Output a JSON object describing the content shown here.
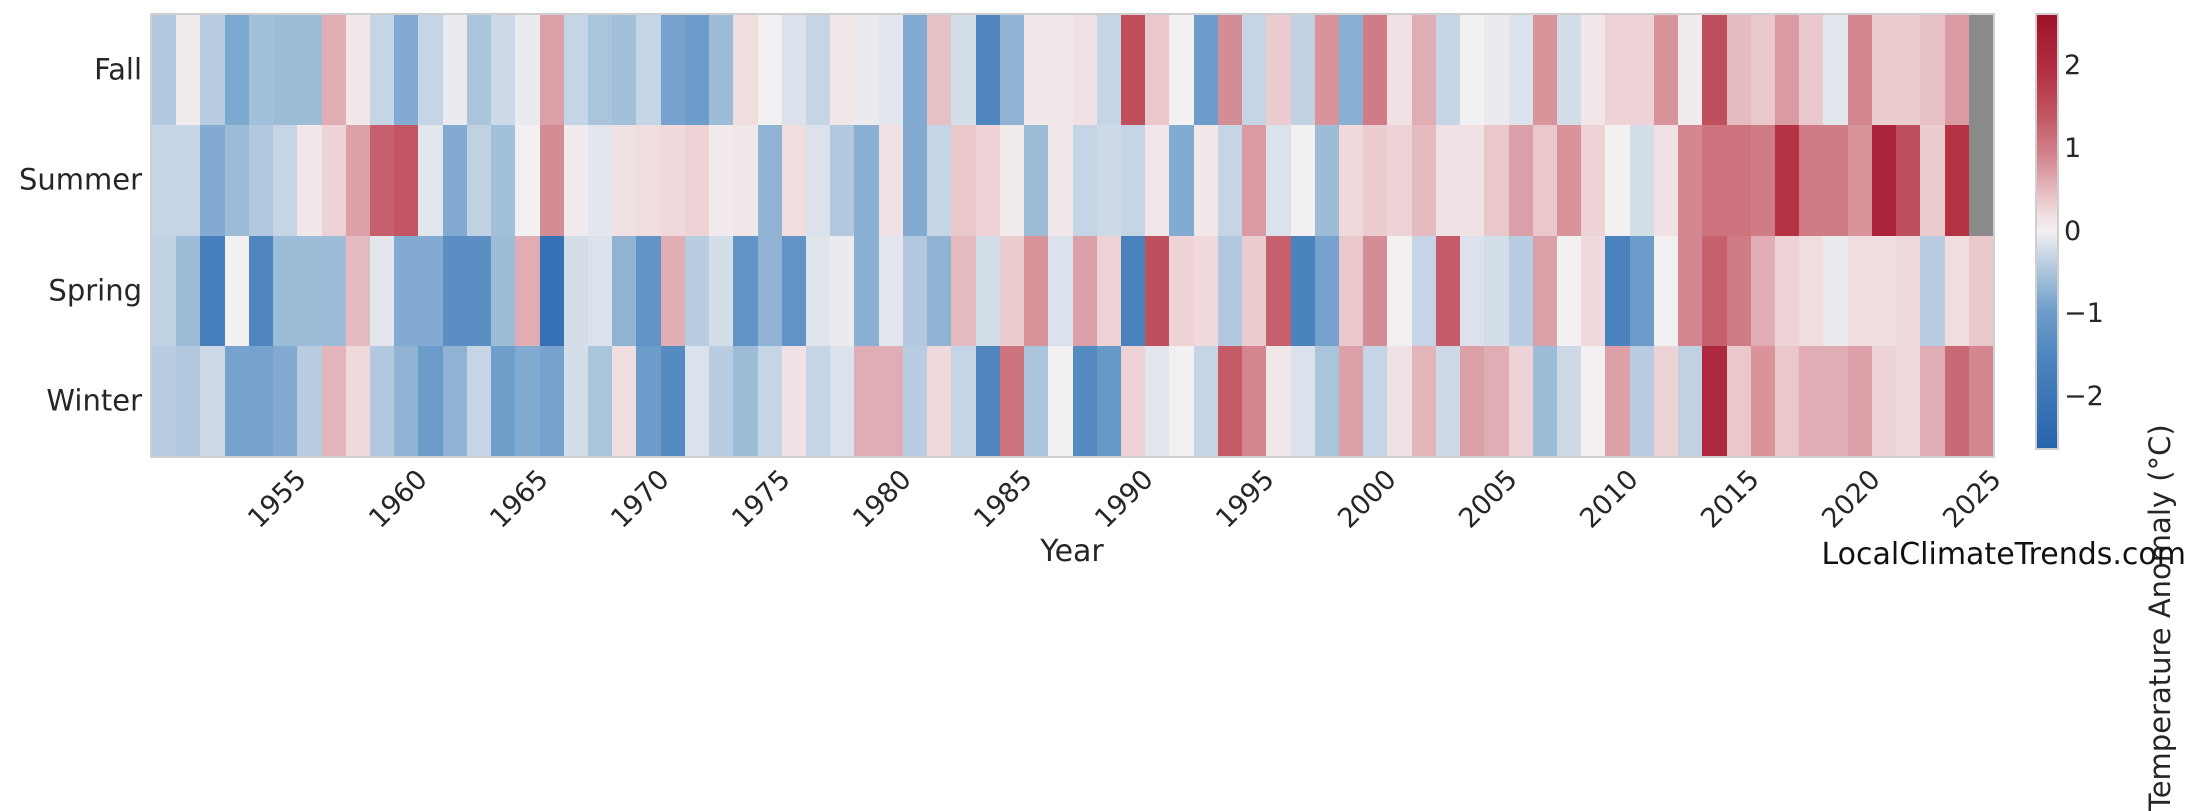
{
  "watermark": "LocalClimateTrends.com",
  "text_color": "#262626",
  "chart_data": {
    "type": "heatmap",
    "title": "",
    "xlabel": "Year",
    "x_start": 1950,
    "x_end": 2025,
    "x_ticks": [
      1955,
      1960,
      1965,
      1970,
      1975,
      1980,
      1985,
      1990,
      1995,
      2000,
      2005,
      2010,
      2015,
      2020,
      2025
    ],
    "rows": [
      {
        "label": "Fall",
        "values": [
          -0.45,
          0.05,
          -0.4,
          -0.85,
          -0.55,
          -0.6,
          -0.6,
          0.6,
          0.1,
          -0.3,
          -0.8,
          -0.3,
          -0.05,
          -0.5,
          -0.25,
          -0.05,
          0.7,
          -0.3,
          -0.5,
          -0.55,
          -0.3,
          -0.9,
          -1.0,
          -0.6,
          0.2,
          0.0,
          -0.15,
          -0.3,
          0.1,
          -0.05,
          -0.1,
          -0.8,
          0.45,
          -0.2,
          -1.5,
          -0.7,
          0.1,
          0.1,
          0.15,
          -0.3,
          1.5,
          0.4,
          0.0,
          -1.0,
          0.85,
          -0.3,
          0.35,
          -0.35,
          0.8,
          -0.75,
          1.0,
          0.15,
          0.6,
          -0.3,
          0.0,
          -0.05,
          -0.15,
          0.8,
          -0.2,
          0.1,
          0.3,
          0.3,
          0.8,
          0.05,
          1.5,
          0.5,
          0.4,
          0.75,
          0.4,
          -0.1,
          0.9,
          0.35,
          0.35,
          0.45,
          0.75,
          null
        ]
      },
      {
        "label": "Summer",
        "values": [
          -0.3,
          -0.3,
          -0.8,
          -0.6,
          -0.45,
          -0.3,
          0.1,
          0.3,
          0.7,
          1.3,
          1.4,
          -0.1,
          -0.8,
          -0.35,
          -0.55,
          0.0,
          0.85,
          0.05,
          -0.1,
          0.15,
          0.2,
          0.25,
          0.3,
          0.05,
          0.1,
          -0.7,
          0.2,
          -0.15,
          -0.45,
          -0.75,
          0.15,
          -0.8,
          -0.3,
          0.4,
          0.3,
          0.05,
          -0.6,
          0.1,
          -0.3,
          -0.25,
          -0.3,
          0.1,
          -0.8,
          0.1,
          -0.3,
          0.75,
          -0.15,
          0.0,
          -0.6,
          0.25,
          0.35,
          0.3,
          0.5,
          0.15,
          0.15,
          0.4,
          0.7,
          0.4,
          0.8,
          0.3,
          0.0,
          -0.2,
          0.15,
          0.9,
          1.1,
          1.1,
          1.0,
          1.9,
          1.0,
          1.0,
          0.8,
          2.2,
          1.5,
          0.35,
          1.9,
          null
        ]
      },
      {
        "label": "Spring",
        "values": [
          -0.35,
          -0.6,
          -1.7,
          0.0,
          -1.5,
          -0.6,
          -0.6,
          -0.6,
          0.5,
          -0.1,
          -0.8,
          -0.8,
          -1.3,
          -1.3,
          -0.6,
          0.6,
          -2.2,
          -0.2,
          -0.15,
          -0.7,
          -1.2,
          0.6,
          -0.4,
          -0.2,
          -1.2,
          -0.7,
          -1.2,
          -0.12,
          -0.05,
          -0.75,
          -0.1,
          -0.45,
          -0.7,
          0.5,
          -0.2,
          0.35,
          0.8,
          -0.15,
          0.7,
          0.3,
          -1.6,
          1.5,
          0.3,
          0.25,
          -0.45,
          0.35,
          1.3,
          -1.6,
          -0.9,
          0.4,
          0.85,
          0.0,
          -0.3,
          1.35,
          -0.15,
          -0.2,
          -0.4,
          0.7,
          0.0,
          0.25,
          -1.6,
          -1.0,
          0.0,
          0.9,
          1.3,
          1.0,
          0.6,
          0.3,
          0.2,
          -0.05,
          0.2,
          0.2,
          0.25,
          -0.4,
          0.2,
          0.4
        ]
      },
      {
        "label": "Winter",
        "values": [
          -0.4,
          -0.45,
          -0.25,
          -0.9,
          -0.9,
          -0.8,
          -0.4,
          0.55,
          0.25,
          -0.45,
          -0.7,
          -1.0,
          -0.7,
          -0.3,
          -0.95,
          -0.8,
          -0.9,
          -0.2,
          -0.5,
          0.2,
          -1.0,
          -1.4,
          -0.15,
          -0.4,
          -0.6,
          -0.3,
          0.15,
          -0.3,
          -0.15,
          0.6,
          0.6,
          -0.4,
          0.25,
          -0.3,
          -1.5,
          1.1,
          -0.5,
          0.0,
          -1.4,
          -1.1,
          0.3,
          -0.1,
          0.0,
          -0.3,
          1.35,
          0.9,
          0.1,
          -0.15,
          -0.5,
          0.7,
          -0.3,
          0.15,
          0.55,
          -0.25,
          0.7,
          0.6,
          0.3,
          -0.6,
          -0.25,
          0.0,
          0.7,
          -0.4,
          0.3,
          -0.35,
          2.1,
          0.4,
          0.8,
          0.4,
          0.6,
          0.6,
          0.7,
          0.3,
          0.25,
          0.6,
          1.2,
          0.9
        ]
      }
    ],
    "colorbar": {
      "label": "Temperature Anomaly (°C)",
      "tick_values": [
        2,
        1,
        0,
        -1,
        -2
      ],
      "tick_labels": [
        "2",
        "1",
        "0",
        "−1",
        "−2"
      ],
      "vmin": -2.62,
      "vmax": 2.62,
      "position": "right"
    },
    "colormap_stops": [
      [
        -2.6,
        "#2765ae"
      ],
      [
        -1.6,
        "#4a82bd"
      ],
      [
        -0.95,
        "#6f9ecb"
      ],
      [
        -0.55,
        "#a3c0da"
      ],
      [
        -0.25,
        "#cdd9e7"
      ],
      [
        0.0,
        "#f2f0f1"
      ],
      [
        0.25,
        "#efd9db"
      ],
      [
        0.55,
        "#e3b4ba"
      ],
      [
        0.9,
        "#d3868f"
      ],
      [
        1.4,
        "#c25663"
      ],
      [
        1.9,
        "#b53245"
      ],
      [
        2.6,
        "#9e1228"
      ]
    ],
    "nan_color": "#8a8a8a",
    "grid": false
  }
}
